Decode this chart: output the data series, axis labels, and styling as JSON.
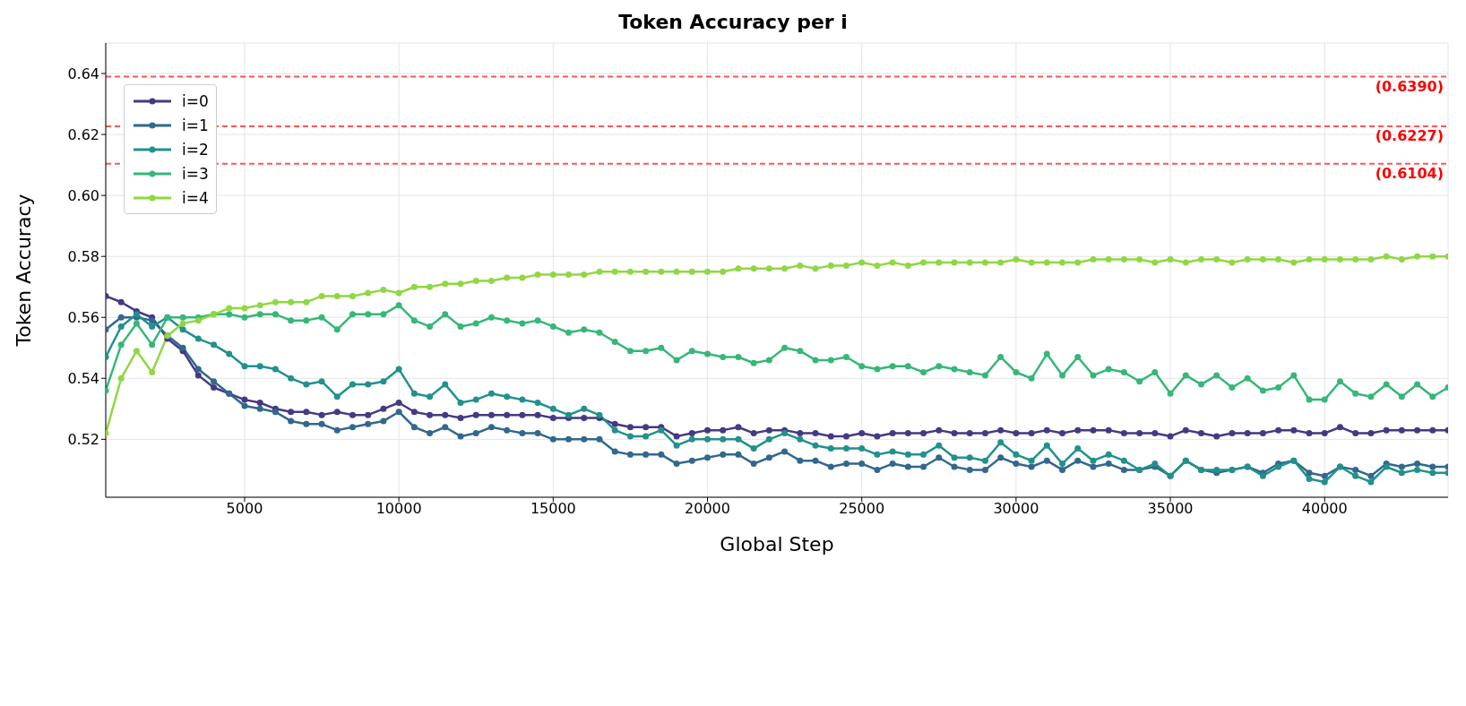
{
  "chart_data": {
    "type": "line",
    "title": "Token Accuracy per i",
    "xlabel": "Global Step",
    "ylabel": "Token Accuracy",
    "x": [
      500,
      1000,
      1500,
      2000,
      2500,
      3000,
      3500,
      4000,
      4500,
      5000,
      5500,
      6000,
      6500,
      7000,
      7500,
      8000,
      8500,
      9000,
      9500,
      10000,
      10500,
      11000,
      11500,
      12000,
      12500,
      13000,
      13500,
      14000,
      14500,
      15000,
      15500,
      16000,
      16500,
      17000,
      17500,
      18000,
      18500,
      19000,
      19500,
      20000,
      20500,
      21000,
      21500,
      22000,
      22500,
      23000,
      23500,
      24000,
      24500,
      25000,
      25500,
      26000,
      26500,
      27000,
      27500,
      28000,
      28500,
      29000,
      29500,
      30000,
      30500,
      31000,
      31500,
      32000,
      32500,
      33000,
      33500,
      34000,
      34500,
      35000,
      35500,
      36000,
      36500,
      37000,
      37500,
      38000,
      38500,
      39000,
      39500,
      40000,
      40500,
      41000,
      41500,
      42000,
      42500,
      43000,
      43500,
      44000
    ],
    "series": [
      {
        "name": "i=0",
        "color": "#443983",
        "values": [
          0.567,
          0.565,
          0.562,
          0.56,
          0.553,
          0.549,
          0.541,
          0.537,
          0.535,
          0.533,
          0.532,
          0.53,
          0.529,
          0.529,
          0.528,
          0.529,
          0.528,
          0.528,
          0.53,
          0.532,
          0.529,
          0.528,
          0.528,
          0.527,
          0.528,
          0.528,
          0.528,
          0.528,
          0.528,
          0.527,
          0.527,
          0.527,
          0.527,
          0.525,
          0.524,
          0.524,
          0.524,
          0.521,
          0.522,
          0.523,
          0.523,
          0.524,
          0.522,
          0.523,
          0.523,
          0.522,
          0.522,
          0.521,
          0.521,
          0.522,
          0.521,
          0.522,
          0.522,
          0.522,
          0.523,
          0.522,
          0.522,
          0.522,
          0.523,
          0.522,
          0.522,
          0.523,
          0.522,
          0.523,
          0.523,
          0.523,
          0.522,
          0.522,
          0.522,
          0.521,
          0.523,
          0.522,
          0.521,
          0.522,
          0.522,
          0.522,
          0.523,
          0.523,
          0.522,
          0.522,
          0.524,
          0.522,
          0.522,
          0.523,
          0.523,
          0.523,
          0.523,
          0.523
        ]
      },
      {
        "name": "i=1",
        "color": "#31688e",
        "values": [
          0.556,
          0.56,
          0.56,
          0.559,
          0.554,
          0.55,
          0.543,
          0.539,
          0.535,
          0.531,
          0.53,
          0.529,
          0.526,
          0.525,
          0.525,
          0.523,
          0.524,
          0.525,
          0.526,
          0.529,
          0.524,
          0.522,
          0.524,
          0.521,
          0.522,
          0.524,
          0.523,
          0.522,
          0.522,
          0.52,
          0.52,
          0.52,
          0.52,
          0.516,
          0.515,
          0.515,
          0.515,
          0.512,
          0.513,
          0.514,
          0.515,
          0.515,
          0.512,
          0.514,
          0.516,
          0.513,
          0.513,
          0.511,
          0.512,
          0.512,
          0.51,
          0.512,
          0.511,
          0.511,
          0.514,
          0.511,
          0.51,
          0.51,
          0.514,
          0.512,
          0.511,
          0.513,
          0.51,
          0.513,
          0.511,
          0.512,
          0.51,
          0.51,
          0.511,
          0.508,
          0.513,
          0.51,
          0.509,
          0.51,
          0.511,
          0.509,
          0.512,
          0.513,
          0.509,
          0.508,
          0.511,
          0.51,
          0.508,
          0.512,
          0.511,
          0.512,
          0.511,
          0.511
        ]
      },
      {
        "name": "i=2",
        "color": "#21918c",
        "values": [
          0.547,
          0.557,
          0.561,
          0.557,
          0.56,
          0.556,
          0.553,
          0.551,
          0.548,
          0.544,
          0.544,
          0.543,
          0.54,
          0.538,
          0.539,
          0.534,
          0.538,
          0.538,
          0.539,
          0.543,
          0.535,
          0.534,
          0.538,
          0.532,
          0.533,
          0.535,
          0.534,
          0.533,
          0.532,
          0.53,
          0.528,
          0.53,
          0.528,
          0.523,
          0.521,
          0.521,
          0.523,
          0.518,
          0.52,
          0.52,
          0.52,
          0.52,
          0.517,
          0.52,
          0.522,
          0.52,
          0.518,
          0.517,
          0.517,
          0.517,
          0.515,
          0.516,
          0.515,
          0.515,
          0.518,
          0.514,
          0.514,
          0.513,
          0.519,
          0.515,
          0.513,
          0.518,
          0.512,
          0.517,
          0.513,
          0.515,
          0.513,
          0.51,
          0.512,
          0.508,
          0.513,
          0.51,
          0.51,
          0.51,
          0.511,
          0.508,
          0.511,
          0.513,
          0.507,
          0.506,
          0.511,
          0.508,
          0.506,
          0.511,
          0.509,
          0.51,
          0.509,
          0.509
        ]
      },
      {
        "name": "i=3",
        "color": "#35b779",
        "values": [
          0.536,
          0.551,
          0.558,
          0.551,
          0.56,
          0.56,
          0.56,
          0.561,
          0.561,
          0.56,
          0.561,
          0.561,
          0.559,
          0.559,
          0.56,
          0.556,
          0.561,
          0.561,
          0.561,
          0.564,
          0.559,
          0.557,
          0.561,
          0.557,
          0.558,
          0.56,
          0.559,
          0.558,
          0.559,
          0.557,
          0.555,
          0.556,
          0.555,
          0.552,
          0.549,
          0.549,
          0.55,
          0.546,
          0.549,
          0.548,
          0.547,
          0.547,
          0.545,
          0.546,
          0.55,
          0.549,
          0.546,
          0.546,
          0.547,
          0.544,
          0.543,
          0.544,
          0.544,
          0.542,
          0.544,
          0.543,
          0.542,
          0.541,
          0.547,
          0.542,
          0.54,
          0.548,
          0.541,
          0.547,
          0.541,
          0.543,
          0.542,
          0.539,
          0.542,
          0.535,
          0.541,
          0.538,
          0.541,
          0.537,
          0.54,
          0.536,
          0.537,
          0.541,
          0.533,
          0.533,
          0.539,
          0.535,
          0.534,
          0.538,
          0.534,
          0.538,
          0.534,
          0.537
        ]
      },
      {
        "name": "i=4",
        "color": "#90d743",
        "values": [
          0.522,
          0.54,
          0.549,
          0.542,
          0.554,
          0.558,
          0.559,
          0.561,
          0.563,
          0.563,
          0.564,
          0.565,
          0.565,
          0.565,
          0.567,
          0.567,
          0.567,
          0.568,
          0.569,
          0.568,
          0.57,
          0.57,
          0.571,
          0.571,
          0.572,
          0.572,
          0.573,
          0.573,
          0.574,
          0.574,
          0.574,
          0.574,
          0.575,
          0.575,
          0.575,
          0.575,
          0.575,
          0.575,
          0.575,
          0.575,
          0.575,
          0.576,
          0.576,
          0.576,
          0.576,
          0.577,
          0.576,
          0.577,
          0.577,
          0.578,
          0.577,
          0.578,
          0.577,
          0.578,
          0.578,
          0.578,
          0.578,
          0.578,
          0.578,
          0.579,
          0.578,
          0.578,
          0.578,
          0.578,
          0.579,
          0.579,
          0.579,
          0.579,
          0.578,
          0.579,
          0.578,
          0.579,
          0.579,
          0.578,
          0.579,
          0.579,
          0.579,
          0.578,
          0.579,
          0.579,
          0.579,
          0.579,
          0.579,
          0.58,
          0.579,
          0.58,
          0.58,
          0.58
        ]
      }
    ],
    "xlim": [
      500,
      44000
    ],
    "xticks": [
      5000,
      10000,
      15000,
      20000,
      25000,
      30000,
      35000,
      40000
    ],
    "ylim": [
      0.501,
      0.65
    ],
    "yticks": [
      0.52,
      0.54,
      0.56,
      0.58,
      {
        "value": 0.6,
        "label": "0.60"
      },
      0.62,
      0.64
    ],
    "ref_lines": [
      {
        "axis": "y",
        "value": 0.639,
        "label": "(0.6390)",
        "color": "#ff5555",
        "line_style": "dashed"
      },
      {
        "axis": "y",
        "value": 0.6227,
        "label": "(0.6227)",
        "color": "#ff5555",
        "line_style": "dashed"
      },
      {
        "axis": "y",
        "value": 0.6104,
        "label": "(0.6104)",
        "color": "#ff5555",
        "line_style": "dashed"
      }
    ],
    "grid": true,
    "legend": "top left",
    "marker": "circle",
    "line_style": "solid"
  }
}
